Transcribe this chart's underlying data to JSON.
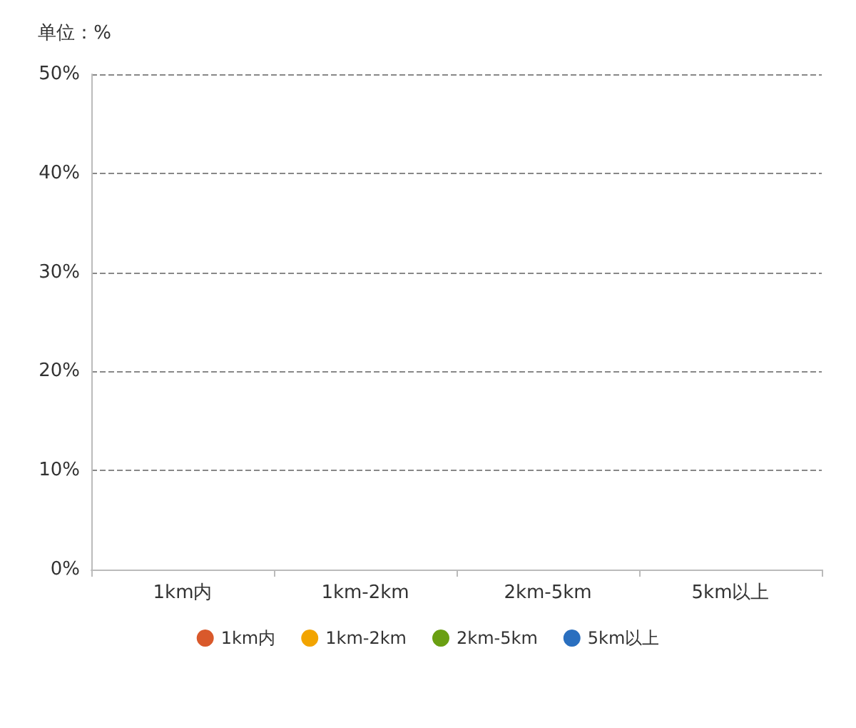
{
  "chart_data": {
    "type": "bar",
    "ylabel": "单位：%",
    "categories": [
      "1km内",
      "1km-2km",
      "2km-5km",
      "5km以上"
    ],
    "series": [
      {
        "name": "1km内",
        "color": "#d9592b",
        "values": [
          0,
          null,
          null,
          null
        ]
      },
      {
        "name": "1km-2km",
        "color": "#f2a400",
        "values": [
          null,
          0,
          null,
          null
        ]
      },
      {
        "name": "2km-5km",
        "color": "#6a9f12",
        "values": [
          null,
          null,
          0,
          null
        ]
      },
      {
        "name": "5km以上",
        "color": "#2a6fbf",
        "values": [
          null,
          null,
          null,
          0
        ]
      }
    ],
    "ylim": [
      0,
      50
    ],
    "yticks": [
      {
        "value": 0,
        "label": "0%"
      },
      {
        "value": 10,
        "label": "10%"
      },
      {
        "value": 20,
        "label": "20%"
      },
      {
        "value": 30,
        "label": "30%"
      },
      {
        "value": 40,
        "label": "40%"
      },
      {
        "value": 50,
        "label": "50%"
      }
    ],
    "grid": "y",
    "legend": "bottom",
    "line_style": "dashed"
  }
}
